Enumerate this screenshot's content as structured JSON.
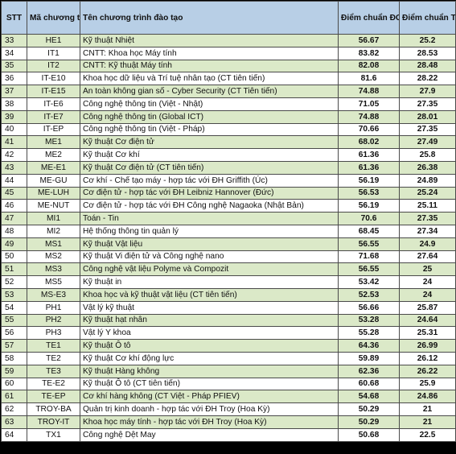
{
  "header": {
    "stt": "STT",
    "code": "Mã chương trình",
    "name": "Tên chương trình đào tạo",
    "tsa": "Điểm chuẩn ĐGTD (TSA)",
    "thpt": "Điểm chuẩn TN THPT"
  },
  "rows": [
    {
      "stt": "33",
      "code": "HE1",
      "name": "Kỹ thuật Nhiệt",
      "tsa": "56.67",
      "thpt": "25.2"
    },
    {
      "stt": "34",
      "code": "IT1",
      "name": "CNTT: Khoa học Máy tính",
      "tsa": "83.82",
      "thpt": "28.53"
    },
    {
      "stt": "35",
      "code": "IT2",
      "name": "CNTT: Kỹ thuật Máy tính",
      "tsa": "82.08",
      "thpt": "28.48"
    },
    {
      "stt": "36",
      "code": "IT-E10",
      "name": "Khoa học dữ liệu và Trí tuệ nhân tạo (CT tiên tiến)",
      "tsa": "81.6",
      "thpt": "28.22"
    },
    {
      "stt": "37",
      "code": "IT-E15",
      "name": "An toàn không gian số - Cyber Security (CT Tiên tiến)",
      "tsa": "74.88",
      "thpt": "27.9"
    },
    {
      "stt": "38",
      "code": "IT-E6",
      "name": "Công nghệ thông tin (Việt - Nhật)",
      "tsa": "71.05",
      "thpt": "27.35"
    },
    {
      "stt": "39",
      "code": "IT-E7",
      "name": "Công nghệ thông tin (Global ICT)",
      "tsa": "74.88",
      "thpt": "28.01"
    },
    {
      "stt": "40",
      "code": "IT-EP",
      "name": "Công nghệ thông tin (Việt - Pháp)",
      "tsa": "70.66",
      "thpt": "27.35"
    },
    {
      "stt": "41",
      "code": "ME1",
      "name": "Kỹ thuật Cơ điện tử",
      "tsa": "68.02",
      "thpt": "27.49"
    },
    {
      "stt": "42",
      "code": "ME2",
      "name": "Kỹ thuật Cơ khí",
      "tsa": "61.36",
      "thpt": "25.8"
    },
    {
      "stt": "43",
      "code": "ME-E1",
      "name": "Kỹ thuật Cơ điện tử (CT tiên tiến)",
      "tsa": "61.36",
      "thpt": "26.38"
    },
    {
      "stt": "44",
      "code": "ME-GU",
      "name": "Cơ khí - Chế tạo máy - hợp tác với ĐH Griffith (Úc)",
      "tsa": "56.19",
      "thpt": "24.89"
    },
    {
      "stt": "45",
      "code": "ME-LUH",
      "name": "Cơ điện tử - hợp tác với ĐH Leibniz Hannover (Đức)",
      "tsa": "56.53",
      "thpt": "25.24"
    },
    {
      "stt": "46",
      "code": "ME-NUT",
      "name": "Cơ điện tử - hợp tác với ĐH Công nghệ Nagaoka (Nhật Bản)",
      "tsa": "56.19",
      "thpt": "25.11"
    },
    {
      "stt": "47",
      "code": "MI1",
      "name": "Toán - Tin",
      "tsa": "70.6",
      "thpt": "27.35"
    },
    {
      "stt": "48",
      "code": "MI2",
      "name": "Hệ thống thông tin quản lý",
      "tsa": "68.45",
      "thpt": "27.34"
    },
    {
      "stt": "49",
      "code": "MS1",
      "name": "Kỹ thuật Vật liệu",
      "tsa": "56.55",
      "thpt": "24.9"
    },
    {
      "stt": "50",
      "code": "MS2",
      "name": "Kỹ thuật Vi điện tử và Công nghệ nano",
      "tsa": "71.68",
      "thpt": "27.64"
    },
    {
      "stt": "51",
      "code": "MS3",
      "name": "Công nghệ vật liệu Polyme và Compozit",
      "tsa": "56.55",
      "thpt": "25"
    },
    {
      "stt": "52",
      "code": "MS5",
      "name": "Kỹ thuật in",
      "tsa": "53.42",
      "thpt": "24"
    },
    {
      "stt": "53",
      "code": "MS-E3",
      "name": "Khoa học và kỹ thuật vật liệu (CT tiên tiến)",
      "tsa": "52.53",
      "thpt": "24"
    },
    {
      "stt": "54",
      "code": "PH1",
      "name": "Vật lý kỹ thuật",
      "tsa": "56.66",
      "thpt": "25.87"
    },
    {
      "stt": "55",
      "code": "PH2",
      "name": "Kỹ thuật hạt nhân",
      "tsa": "53.28",
      "thpt": "24.64"
    },
    {
      "stt": "56",
      "code": "PH3",
      "name": "Vật lý Y khoa",
      "tsa": "55.28",
      "thpt": "25.31"
    },
    {
      "stt": "57",
      "code": "TE1",
      "name": "Kỹ thuật Ô tô",
      "tsa": "64.36",
      "thpt": "26.99"
    },
    {
      "stt": "58",
      "code": "TE2",
      "name": "Kỹ thuật Cơ khí động lực",
      "tsa": "59.89",
      "thpt": "26.12"
    },
    {
      "stt": "59",
      "code": "TE3",
      "name": "Kỹ thuật Hàng không",
      "tsa": "62.36",
      "thpt": "26.22"
    },
    {
      "stt": "60",
      "code": "TE-E2",
      "name": "Kỹ thuật Ô tô (CT tiên tiến)",
      "tsa": "60.68",
      "thpt": "25.9"
    },
    {
      "stt": "61",
      "code": "TE-EP",
      "name": "Cơ khí hàng không (CT Việt - Pháp PFIEV)",
      "tsa": "54.68",
      "thpt": "24.86"
    },
    {
      "stt": "62",
      "code": "TROY-BA",
      "name": "Quản trị kinh doanh - hợp tác với ĐH Troy (Hoa Kỳ)",
      "tsa": "50.29",
      "thpt": "21"
    },
    {
      "stt": "63",
      "code": "TROY-IT",
      "name": "Khoa học máy tính - hợp tác với ĐH Troy (Hoa Kỳ)",
      "tsa": "50.29",
      "thpt": "21"
    },
    {
      "stt": "64",
      "code": "TX1",
      "name": "Công nghệ Dệt May",
      "tsa": "50.68",
      "thpt": "22.5"
    }
  ]
}
